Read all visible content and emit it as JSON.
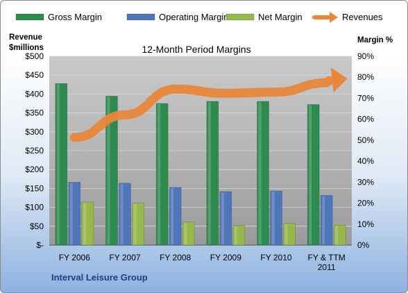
{
  "chart_data": {
    "type": "bar",
    "title": "12-Month Period Margins",
    "left_axis_title": [
      "Revenue",
      "$millions"
    ],
    "right_axis_title": "Margin %",
    "footer_label": "Interval Leisure Group",
    "categories": [
      "FY 2006",
      "FY 2007",
      "FY 2008",
      "FY 2009",
      "FY 2010",
      "FY & TTM 2011"
    ],
    "left_ticks": [
      "$-",
      "$50",
      "$100",
      "$150",
      "$200",
      "$250",
      "$300",
      "$350",
      "$400",
      "$450",
      "$500"
    ],
    "right_ticks": [
      "0%",
      "10%",
      "20%",
      "30%",
      "40%",
      "50%",
      "60%",
      "70%",
      "80%",
      "90%"
    ],
    "ylim_left": [
      0,
      500
    ],
    "ylim_right": [
      0,
      90
    ],
    "legend_position": "top",
    "series": [
      {
        "name": "Gross Margin",
        "type": "bar",
        "axis": "right",
        "color": "#2e8b4f",
        "values": [
          77,
          71,
          67.5,
          68.5,
          68.5,
          67
        ]
      },
      {
        "name": "Operating Margin",
        "type": "bar",
        "axis": "right",
        "color": "#4f76b8",
        "values": [
          30,
          29.5,
          27.5,
          25.5,
          25.8,
          23.7
        ]
      },
      {
        "name": "Net Margin",
        "type": "bar",
        "axis": "right",
        "color": "#97b84a",
        "values": [
          20.5,
          20,
          11,
          9.3,
          10.3,
          9.5
        ]
      },
      {
        "name": "Revenues",
        "type": "arrow",
        "axis": "left",
        "color": "#e8873a",
        "values": [
          285,
          345,
          413,
          402,
          405,
          430
        ]
      }
    ]
  }
}
